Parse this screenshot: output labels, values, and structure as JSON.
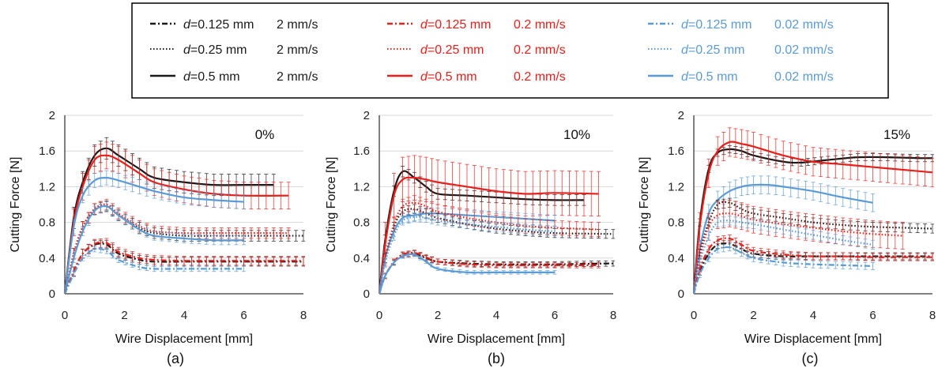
{
  "colors": {
    "black": "#1a1a1a",
    "red": "#e8201c",
    "blue": "#5b9bd5",
    "grid": "#d9d9d9"
  },
  "legend": {
    "columns": [
      {
        "color": "#1a1a1a",
        "speed": "2 mm/s",
        "items": [
          {
            "d_label": "d",
            "d_value": "=0.125 mm",
            "speed": "2 mm/s",
            "style": "dashdot"
          },
          {
            "d_label": "d",
            "d_value": "=0.25 mm",
            "speed": "2 mm/s",
            "style": "dotted"
          },
          {
            "d_label": "d",
            "d_value": "=0.5 mm",
            "speed": "2 mm/s",
            "style": "solid"
          }
        ]
      },
      {
        "color": "#e8201c",
        "speed": "0.2 mm/s",
        "items": [
          {
            "d_label": "d",
            "d_value": "=0.125 mm",
            "speed": "0.2 mm/s",
            "style": "dashdot"
          },
          {
            "d_label": "d",
            "d_value": "=0.25 mm",
            "speed": "0.2 mm/s",
            "style": "dotted"
          },
          {
            "d_label": "d",
            "d_value": "=0.5 mm",
            "speed": "0.2 mm/s",
            "style": "solid"
          }
        ]
      },
      {
        "color": "#5b9bd5",
        "speed": "0.02 mm/s",
        "items": [
          {
            "d_label": "d",
            "d_value": "=0.125 mm",
            "speed": "0.02 mm/s",
            "style": "dashdot"
          },
          {
            "d_label": "d",
            "d_value": "=0.25 mm",
            "speed": "0.02 mm/s",
            "style": "dotted"
          },
          {
            "d_label": "d",
            "d_value": "=0.5 mm",
            "speed": "0.02 mm/s",
            "style": "solid"
          }
        ]
      }
    ]
  },
  "chart_data": [
    {
      "type": "line",
      "panel_label": "(a)",
      "annotation": "0%",
      "xlabel": "Wire Displacement [mm]",
      "ylabel": "Cutting Force [N]",
      "xlim": [
        0,
        8
      ],
      "ylim": [
        0,
        2
      ],
      "xticks": [
        "0",
        "2",
        "4",
        "6",
        "8"
      ],
      "yticks": [
        "0",
        "0.4",
        "0.8",
        "1.2",
        "1.6",
        "2"
      ],
      "grid": "horizontal",
      "series": [
        {
          "name": "d=0.5 mm 2 mm/s",
          "color": "black",
          "style": "solid",
          "err": 0.12,
          "x": [
            0,
            0.3,
            0.6,
            1.0,
            1.4,
            1.8,
            2.5,
            3.0,
            4.0,
            5.0,
            6.0,
            7.0
          ],
          "y": [
            0,
            0.85,
            1.25,
            1.55,
            1.63,
            1.55,
            1.4,
            1.3,
            1.25,
            1.22,
            1.22,
            1.22
          ]
        },
        {
          "name": "d=0.5 mm 0.2 mm/s",
          "color": "red",
          "style": "solid",
          "err": 0.15,
          "x": [
            0,
            0.3,
            0.6,
            1.0,
            1.4,
            1.8,
            2.5,
            3.0,
            4.0,
            5.0,
            6.0,
            7.5
          ],
          "y": [
            0,
            0.8,
            1.2,
            1.5,
            1.55,
            1.5,
            1.35,
            1.25,
            1.17,
            1.12,
            1.1,
            1.1
          ]
        },
        {
          "name": "d=0.5 mm 0.02 mm/s",
          "color": "blue",
          "style": "solid",
          "err": 0.08,
          "x": [
            0,
            0.3,
            0.6,
            1.0,
            1.4,
            1.8,
            2.5,
            3.0,
            4.0,
            5.0,
            6.0
          ],
          "y": [
            0,
            0.75,
            1.1,
            1.27,
            1.3,
            1.27,
            1.2,
            1.15,
            1.08,
            1.05,
            1.03
          ]
        },
        {
          "name": "d=0.25 mm 2 mm/s",
          "color": "black",
          "style": "dotted",
          "err": 0.06,
          "x": [
            0,
            0.3,
            0.6,
            1.0,
            1.4,
            1.8,
            2.5,
            3.0,
            4.0,
            5.0,
            6.0,
            8.0
          ],
          "y": [
            0,
            0.45,
            0.75,
            0.95,
            0.98,
            0.88,
            0.74,
            0.68,
            0.65,
            0.65,
            0.65,
            0.65
          ]
        },
        {
          "name": "d=0.25 mm 0.2 mm/s",
          "color": "red",
          "style": "dotted",
          "err": 0.06,
          "x": [
            0,
            0.3,
            0.6,
            1.0,
            1.4,
            1.8,
            2.5,
            3.0,
            4.0,
            5.0,
            6.0,
            7.5
          ],
          "y": [
            0,
            0.45,
            0.75,
            0.95,
            1.0,
            0.9,
            0.76,
            0.7,
            0.68,
            0.68,
            0.68,
            0.68
          ]
        },
        {
          "name": "d=0.25 mm 0.02 mm/s",
          "color": "blue",
          "style": "solid",
          "err": 0.05,
          "x": [
            0,
            0.3,
            0.6,
            1.0,
            1.4,
            1.8,
            2.5,
            3.0,
            4.0,
            5.0,
            6.0
          ],
          "y": [
            0,
            0.4,
            0.7,
            0.93,
            0.98,
            0.88,
            0.72,
            0.65,
            0.62,
            0.6,
            0.6
          ]
        },
        {
          "name": "d=0.125 mm 2 mm/s",
          "color": "black",
          "style": "dashdot",
          "err": 0.05,
          "x": [
            0,
            0.3,
            0.6,
            1.0,
            1.4,
            1.8,
            2.5,
            3.0,
            4.0,
            5.0,
            6.0,
            8.0
          ],
          "y": [
            0,
            0.25,
            0.45,
            0.55,
            0.55,
            0.45,
            0.38,
            0.36,
            0.36,
            0.36,
            0.36,
            0.36
          ]
        },
        {
          "name": "d=0.125 mm 0.2 mm/s",
          "color": "red",
          "style": "dashdot",
          "err": 0.05,
          "x": [
            0,
            0.3,
            0.6,
            1.0,
            1.4,
            1.8,
            2.5,
            3.0,
            4.0,
            5.0,
            6.0,
            8.0
          ],
          "y": [
            0,
            0.25,
            0.45,
            0.56,
            0.57,
            0.47,
            0.4,
            0.38,
            0.37,
            0.37,
            0.37,
            0.37
          ]
        },
        {
          "name": "d=0.125 mm 0.02 mm/s",
          "color": "blue",
          "style": "dashdot",
          "err": 0.03,
          "x": [
            0,
            0.3,
            0.6,
            1.0,
            1.4,
            1.8,
            2.5,
            3.0,
            4.0,
            5.0,
            6.0
          ],
          "y": [
            0,
            0.22,
            0.4,
            0.5,
            0.48,
            0.38,
            0.3,
            0.28,
            0.28,
            0.28,
            0.28
          ]
        }
      ]
    },
    {
      "type": "line",
      "panel_label": "(b)",
      "annotation": "10%",
      "xlabel": "Wire Displacement [mm]",
      "ylabel": "Cutting Force [N]",
      "xlim": [
        0,
        8
      ],
      "ylim": [
        0,
        2
      ],
      "xticks": [
        "0",
        "2",
        "4",
        "6",
        "8"
      ],
      "yticks": [
        "0",
        "0.4",
        "0.8",
        "1.2",
        "1.6",
        "2"
      ],
      "grid": "horizontal",
      "series": [
        {
          "name": "d=0.5 mm 2 mm/s",
          "color": "black",
          "style": "solid",
          "err": 0.06,
          "x": [
            0,
            0.2,
            0.5,
            0.8,
            1.2,
            1.6,
            2.0,
            3.0,
            4.0,
            5.0,
            6.0,
            7.0
          ],
          "y": [
            0,
            0.6,
            1.15,
            1.37,
            1.3,
            1.2,
            1.12,
            1.1,
            1.08,
            1.06,
            1.05,
            1.05
          ]
        },
        {
          "name": "d=0.5 mm 0.2 mm/s",
          "color": "red",
          "style": "solid",
          "err": 0.25,
          "x": [
            0,
            0.2,
            0.5,
            0.8,
            1.2,
            1.6,
            2.0,
            3.0,
            4.0,
            5.0,
            6.0,
            7.5
          ],
          "y": [
            0,
            0.55,
            1.1,
            1.28,
            1.3,
            1.28,
            1.25,
            1.2,
            1.15,
            1.12,
            1.13,
            1.12
          ]
        },
        {
          "name": "d=0.5 mm 0.02 mm/s",
          "color": "blue",
          "style": "solid",
          "err": 0.06,
          "x": [
            0,
            0.2,
            0.5,
            0.8,
            1.2,
            1.6,
            2.0,
            3.0,
            4.0,
            5.0,
            6.0
          ],
          "y": [
            0,
            0.4,
            0.7,
            0.85,
            0.88,
            0.9,
            0.9,
            0.88,
            0.86,
            0.84,
            0.82
          ]
        },
        {
          "name": "d=0.25 mm 2 mm/s",
          "color": "black",
          "style": "dotted",
          "err": 0.05,
          "x": [
            0,
            0.2,
            0.5,
            0.8,
            1.2,
            1.6,
            2.0,
            3.0,
            4.0,
            5.0,
            6.0,
            8.0
          ],
          "y": [
            0,
            0.4,
            0.75,
            0.92,
            0.95,
            0.9,
            0.85,
            0.78,
            0.73,
            0.7,
            0.68,
            0.67
          ]
        },
        {
          "name": "d=0.25 mm 0.2 mm/s",
          "color": "red",
          "style": "dotted",
          "err": 0.08,
          "x": [
            0,
            0.2,
            0.5,
            0.8,
            1.2,
            1.6,
            2.0,
            3.0,
            4.0,
            5.0,
            6.0,
            7.5
          ],
          "y": [
            0,
            0.4,
            0.78,
            0.98,
            1.02,
            0.98,
            0.92,
            0.85,
            0.8,
            0.76,
            0.74,
            0.72
          ]
        },
        {
          "name": "d=0.25 mm 0.02 mm/s",
          "color": "blue",
          "style": "dotted",
          "err": 0.05,
          "x": [
            0,
            0.2,
            0.5,
            0.8,
            1.2,
            1.6,
            2.0,
            3.0,
            4.0,
            5.0,
            6.0
          ],
          "y": [
            0,
            0.35,
            0.65,
            0.82,
            0.86,
            0.85,
            0.82,
            0.78,
            0.75,
            0.72,
            0.7
          ]
        },
        {
          "name": "d=0.125 mm 2 mm/s",
          "color": "black",
          "style": "dashdot",
          "err": 0.03,
          "x": [
            0,
            0.2,
            0.5,
            0.8,
            1.2,
            1.6,
            2.0,
            3.0,
            4.0,
            5.0,
            6.0,
            8.0
          ],
          "y": [
            0,
            0.2,
            0.35,
            0.43,
            0.45,
            0.4,
            0.36,
            0.34,
            0.33,
            0.33,
            0.33,
            0.34
          ]
        },
        {
          "name": "d=0.125 mm 0.2 mm/s",
          "color": "red",
          "style": "dashdot",
          "err": 0.03,
          "x": [
            0,
            0.2,
            0.5,
            0.8,
            1.2,
            1.6,
            2.0,
            3.0,
            4.0,
            5.0,
            6.0,
            7.5
          ],
          "y": [
            0,
            0.2,
            0.36,
            0.44,
            0.46,
            0.41,
            0.36,
            0.33,
            0.32,
            0.32,
            0.32,
            0.32
          ]
        },
        {
          "name": "d=0.125 mm 0.02 mm/s",
          "color": "blue",
          "style": "solid",
          "err": 0.02,
          "x": [
            0,
            0.2,
            0.5,
            0.8,
            1.2,
            1.6,
            2.0,
            3.0,
            4.0,
            5.0,
            6.0
          ],
          "y": [
            0,
            0.2,
            0.35,
            0.42,
            0.44,
            0.36,
            0.28,
            0.24,
            0.24,
            0.24,
            0.24
          ]
        }
      ]
    },
    {
      "type": "line",
      "panel_label": "(c)",
      "annotation": "15%",
      "xlabel": "Wire Displacement [mm]",
      "ylabel": "Cutting Force [N]",
      "xlim": [
        0,
        8
      ],
      "ylim": [
        0,
        2
      ],
      "xticks": [
        "0",
        "2",
        "4",
        "6",
        "8"
      ],
      "yticks": [
        "0",
        "0.4",
        "0.8",
        "1.2",
        "1.6",
        "2"
      ],
      "grid": "horizontal",
      "series": [
        {
          "name": "d=0.5 mm 2 mm/s",
          "color": "black",
          "style": "solid",
          "err": 0.04,
          "x": [
            0,
            0.2,
            0.5,
            0.8,
            1.2,
            1.6,
            2.0,
            3.0,
            3.6,
            4.5,
            5.5,
            6.5,
            7.5,
            8.0
          ],
          "y": [
            0,
            0.8,
            1.4,
            1.58,
            1.62,
            1.6,
            1.55,
            1.48,
            1.47,
            1.5,
            1.53,
            1.53,
            1.52,
            1.52
          ]
        },
        {
          "name": "d=0.5 mm 0.2 mm/s",
          "color": "red",
          "style": "solid",
          "err": 0.16,
          "x": [
            0,
            0.2,
            0.5,
            0.8,
            1.2,
            1.6,
            2.0,
            3.0,
            4.0,
            5.0,
            6.0,
            7.0,
            8.0
          ],
          "y": [
            0,
            0.75,
            1.35,
            1.6,
            1.7,
            1.68,
            1.65,
            1.55,
            1.48,
            1.45,
            1.42,
            1.39,
            1.36
          ]
        },
        {
          "name": "d=0.5 mm 0.02 mm/s",
          "color": "blue",
          "style": "solid",
          "err": 0.1,
          "x": [
            0,
            0.2,
            0.5,
            0.8,
            1.2,
            1.6,
            2.0,
            2.5,
            3.0,
            4.0,
            5.0,
            6.0
          ],
          "y": [
            0,
            0.5,
            0.9,
            1.05,
            1.15,
            1.2,
            1.22,
            1.22,
            1.2,
            1.15,
            1.08,
            1.02
          ]
        },
        {
          "name": "d=0.25 mm 2 mm/s",
          "color": "black",
          "style": "dotted",
          "err": 0.05,
          "x": [
            0,
            0.2,
            0.5,
            0.8,
            1.2,
            1.6,
            2.0,
            3.0,
            4.0,
            5.0,
            6.0,
            7.0,
            8.0
          ],
          "y": [
            0,
            0.45,
            0.8,
            1.0,
            1.02,
            0.95,
            0.9,
            0.85,
            0.8,
            0.77,
            0.75,
            0.74,
            0.73
          ]
        },
        {
          "name": "d=0.25 mm 0.2 mm/s",
          "color": "red",
          "style": "dotted",
          "err": 0.15,
          "x": [
            0,
            0.2,
            0.5,
            0.8,
            1.2,
            1.6,
            2.0,
            3.0,
            4.0,
            5.0,
            6.0,
            7.0
          ],
          "y": [
            0,
            0.4,
            0.75,
            0.88,
            0.9,
            0.87,
            0.83,
            0.78,
            0.74,
            0.7,
            0.67,
            0.65
          ]
        },
        {
          "name": "d=0.25 mm 0.02 mm/s",
          "color": "blue",
          "style": "dotted",
          "err": 0.05,
          "x": [
            0,
            0.2,
            0.5,
            0.8,
            1.2,
            1.6,
            2.0,
            3.0,
            4.0,
            5.0,
            6.0
          ],
          "y": [
            0,
            0.35,
            0.65,
            0.8,
            0.82,
            0.8,
            0.78,
            0.72,
            0.66,
            0.6,
            0.55
          ]
        },
        {
          "name": "d=0.125 mm 2 mm/s",
          "color": "black",
          "style": "dashdot",
          "err": 0.04,
          "x": [
            0,
            0.2,
            0.5,
            0.8,
            1.2,
            1.6,
            2.0,
            3.0,
            4.0,
            5.0,
            6.0,
            7.0,
            8.0
          ],
          "y": [
            0,
            0.25,
            0.45,
            0.55,
            0.56,
            0.5,
            0.45,
            0.42,
            0.42,
            0.42,
            0.42,
            0.42,
            0.42
          ]
        },
        {
          "name": "d=0.125 mm 0.2 mm/s",
          "color": "red",
          "style": "dashdot",
          "err": 0.04,
          "x": [
            0,
            0.2,
            0.5,
            0.8,
            1.2,
            1.6,
            2.0,
            3.0,
            4.0,
            5.0,
            6.0,
            7.0,
            8.0
          ],
          "y": [
            0,
            0.28,
            0.5,
            0.6,
            0.62,
            0.55,
            0.48,
            0.44,
            0.42,
            0.42,
            0.41,
            0.41,
            0.41
          ]
        },
        {
          "name": "d=0.125 mm 0.02 mm/s",
          "color": "blue",
          "style": "dashdot",
          "err": 0.04,
          "x": [
            0,
            0.2,
            0.5,
            0.8,
            1.2,
            1.6,
            2.0,
            3.0,
            4.0,
            5.0,
            6.0
          ],
          "y": [
            0,
            0.22,
            0.4,
            0.5,
            0.52,
            0.46,
            0.4,
            0.35,
            0.33,
            0.32,
            0.31
          ]
        }
      ]
    }
  ]
}
